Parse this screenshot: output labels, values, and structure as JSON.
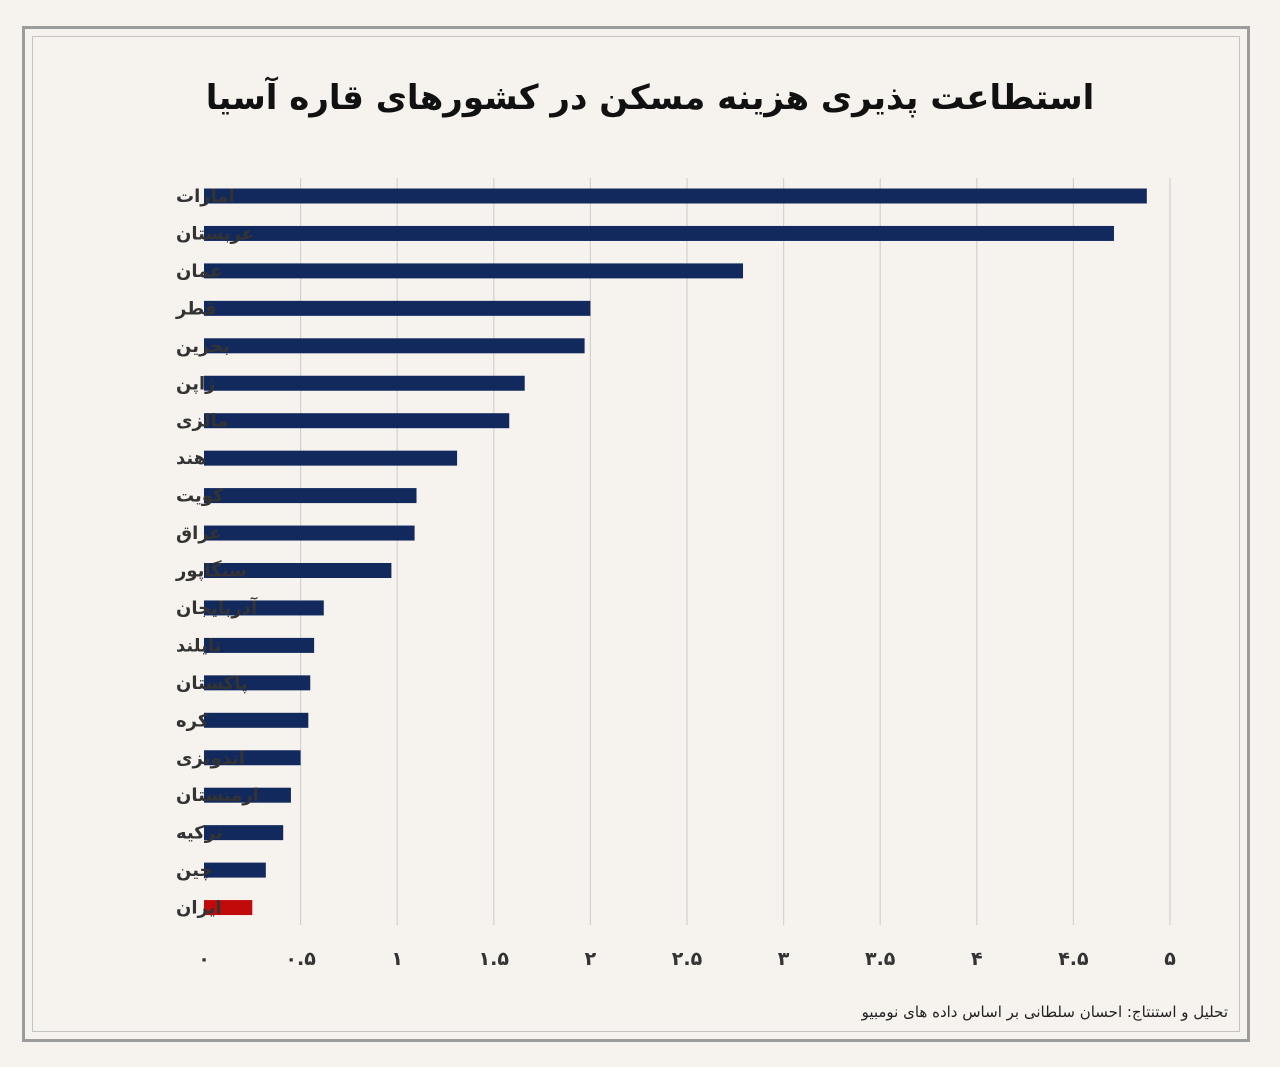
{
  "title": "استطاعت پذیری هزینه مسکن در کشورهای قاره آسیا",
  "credit": "تحلیل و استنتاج: احسان سلطانی بر اساس داده های نومبیو",
  "colors": {
    "bar": "#12295e",
    "highlight": "#c10b0b",
    "grid": "#d2d2d2",
    "background": "#f6f3ee"
  },
  "chart_data": {
    "type": "bar",
    "orientation": "horizontal",
    "categories": [
      "امارات",
      "عربستان",
      "عمان",
      "قطر",
      "بحرین",
      "ژاپن",
      "مالزی",
      "هند",
      "کویت",
      "عراق",
      "سنگاپور",
      "آذربایجان",
      "تایلند",
      "پاکستان",
      "کره",
      "اندونزی",
      "ارمنستان",
      "ترکیه",
      "چین",
      "ایران"
    ],
    "values": [
      4.88,
      4.71,
      2.79,
      2.0,
      1.97,
      1.66,
      1.58,
      1.31,
      1.1,
      1.09,
      0.97,
      0.62,
      0.57,
      0.55,
      0.54,
      0.5,
      0.45,
      0.41,
      0.32,
      0.25
    ],
    "highlight_category": "ایران",
    "xlim": [
      0,
      5
    ],
    "xticks": [
      0,
      0.5,
      1,
      1.5,
      2,
      2.5,
      3,
      3.5,
      4,
      4.5,
      5
    ],
    "xtick_labels": [
      "۰",
      "۰.۵",
      "۱",
      "۱.۵",
      "۲",
      "۲.۵",
      "۳",
      "۳.۵",
      "۴",
      "۴.۵",
      "۵"
    ],
    "grid": true,
    "legend": "none"
  }
}
